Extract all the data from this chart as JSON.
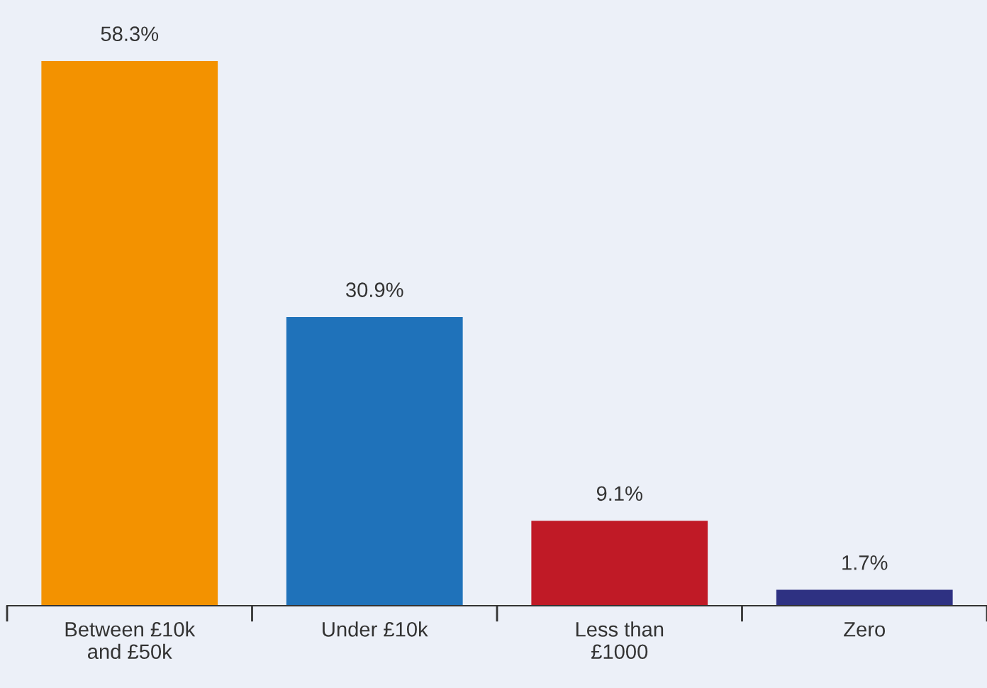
{
  "chart_data": {
    "type": "bar",
    "categories": [
      "Between £10k\nand £50k",
      "Under £10k",
      "Less than\n£1000",
      "Zero"
    ],
    "values": [
      58.3,
      30.9,
      9.1,
      1.7
    ],
    "colors": [
      "#f39200",
      "#1f72ba",
      "#c01a26",
      "#2e3182"
    ],
    "value_labels": [
      "58.3%",
      "30.9%",
      "9.1%",
      "1.7%"
    ],
    "grid": false,
    "legend": false
  }
}
